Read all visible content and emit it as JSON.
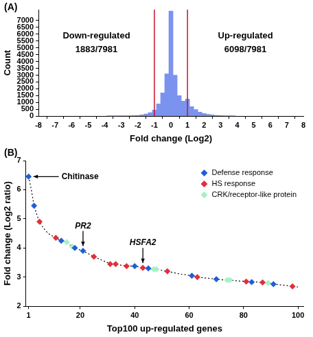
{
  "chart_data": [
    {
      "type": "histogram",
      "title": "(A)",
      "xlabel": "Fold change (Log2)",
      "ylabel": "Count",
      "bins": [
        -3.875,
        -3.625,
        -3.375,
        -3.125,
        -2.875,
        -2.625,
        -2.375,
        -2.125,
        -1.875,
        -1.625,
        -1.375,
        -1.125,
        -0.875,
        -0.625,
        -0.375,
        -0.125,
        0.125,
        0.375,
        0.625,
        0.875,
        1.125,
        1.375,
        1.625,
        1.875,
        2.125,
        2.375,
        2.625,
        2.875,
        3.125,
        3.375,
        3.625,
        3.875
      ],
      "values": [
        2,
        3,
        5,
        8,
        15,
        25,
        40,
        60,
        100,
        160,
        260,
        450,
        900,
        1700,
        3100,
        7700,
        3000,
        1500,
        1100,
        1250,
        700,
        480,
        300,
        200,
        130,
        90,
        60,
        40,
        25,
        15,
        8
      ],
      "color": "#7b93ee",
      "xlim": [
        -8,
        8
      ],
      "xticks": [
        -8,
        -7,
        -6,
        -5,
        -4,
        -3,
        -2,
        -1,
        0,
        1,
        2,
        3,
        4,
        5,
        6,
        7,
        8
      ],
      "ylim": [
        0,
        7800
      ],
      "yticks": [
        0,
        500,
        1000,
        1500,
        2000,
        2500,
        3000,
        3500,
        4000,
        4500,
        5000,
        5500,
        6000,
        6500,
        7000
      ],
      "grid": false,
      "vlines": [
        {
          "x": -1,
          "color": "#c8102e"
        },
        {
          "x": 1,
          "color": "#c8102e"
        }
      ],
      "annotations": [
        {
          "text": "Down-regulated",
          "value": "1883/7981"
        },
        {
          "text": "Up-regulated",
          "value": "6098/7981"
        }
      ]
    },
    {
      "type": "scatter",
      "title": "(B)",
      "xlabel": "Top100 up-regulated genes",
      "ylabel": "Fold change (Log2 ratio)",
      "xlim": [
        0,
        102
      ],
      "xticks": [
        1,
        20,
        40,
        60,
        80,
        100
      ],
      "ylim": [
        2,
        7
      ],
      "yticks": [
        2,
        3,
        4,
        5,
        6,
        7
      ],
      "grid": false,
      "legend": "upper right",
      "marker": "diamond",
      "series": [
        {
          "name": "Defense response",
          "color": "#1f5fd6",
          "x": [
            1,
            3,
            13,
            18,
            21,
            40,
            45,
            61,
            70,
            83,
            91
          ],
          "values": [
            6.45,
            5.45,
            4.25,
            4.0,
            3.9,
            3.38,
            3.3,
            3.05,
            2.93,
            2.83,
            2.76
          ]
        },
        {
          "name": "HS response",
          "color": "#e0303c",
          "x": [
            5,
            11,
            25,
            31,
            33,
            37,
            43,
            52,
            63,
            81,
            87,
            98
          ],
          "values": [
            4.9,
            4.35,
            3.7,
            3.45,
            3.45,
            3.38,
            3.32,
            3.2,
            3.0,
            2.85,
            2.82,
            2.68
          ]
        },
        {
          "name": "CRK/receptor-like protein",
          "color": "#a6f0c6",
          "x": [
            15,
            17,
            47,
            48,
            74,
            75,
            89
          ],
          "values": [
            4.2,
            4.05,
            3.27,
            3.27,
            2.9,
            2.9,
            2.8
          ]
        }
      ],
      "trend": {
        "color": "#000000",
        "line_style": "dotted",
        "x": [
          1,
          2,
          3,
          4,
          5,
          6,
          7,
          8,
          9,
          10,
          11,
          12,
          13,
          14,
          15,
          16,
          17,
          18,
          19,
          20,
          21,
          22,
          23,
          24,
          25,
          26,
          27,
          28,
          29,
          30,
          31,
          32,
          33,
          34,
          35,
          36,
          37,
          38,
          39,
          40,
          41,
          42,
          43,
          44,
          45,
          46,
          47,
          48,
          49,
          50,
          51,
          52,
          53,
          54,
          55,
          56,
          57,
          58,
          59,
          60,
          61,
          62,
          63,
          64,
          65,
          66,
          67,
          68,
          69,
          70,
          71,
          72,
          73,
          74,
          75,
          76,
          77,
          78,
          79,
          80,
          81,
          82,
          83,
          84,
          85,
          86,
          87,
          88,
          89,
          90,
          91,
          92,
          93,
          94,
          95,
          96,
          97,
          98,
          99,
          100
        ],
        "values": [
          6.45,
          6.0,
          5.45,
          5.15,
          4.9,
          4.75,
          4.62,
          4.52,
          4.45,
          4.4,
          4.35,
          4.3,
          4.25,
          4.22,
          4.2,
          4.12,
          4.05,
          4.0,
          3.96,
          3.93,
          3.9,
          3.85,
          3.8,
          3.75,
          3.7,
          3.66,
          3.62,
          3.58,
          3.54,
          3.5,
          3.45,
          3.45,
          3.45,
          3.43,
          3.41,
          3.4,
          3.38,
          3.38,
          3.38,
          3.38,
          3.36,
          3.34,
          3.32,
          3.31,
          3.3,
          3.28,
          3.27,
          3.27,
          3.25,
          3.23,
          3.21,
          3.2,
          3.18,
          3.16,
          3.14,
          3.12,
          3.1,
          3.09,
          3.08,
          3.06,
          3.05,
          3.03,
          3.0,
          2.99,
          2.98,
          2.97,
          2.96,
          2.95,
          2.94,
          2.93,
          2.92,
          2.91,
          2.91,
          2.9,
          2.9,
          2.89,
          2.88,
          2.87,
          2.86,
          2.86,
          2.85,
          2.84,
          2.83,
          2.83,
          2.83,
          2.82,
          2.82,
          2.81,
          2.8,
          2.78,
          2.76,
          2.75,
          2.74,
          2.73,
          2.72,
          2.71,
          2.7,
          2.68,
          2.67,
          2.66
        ]
      },
      "annotations": [
        {
          "text": "Chitinase",
          "x": 1,
          "y": 6.45
        },
        {
          "text": "PR2",
          "x": 21,
          "y": 3.9
        },
        {
          "text": "HSFA2",
          "x": 43,
          "y": 3.32
        }
      ]
    }
  ]
}
